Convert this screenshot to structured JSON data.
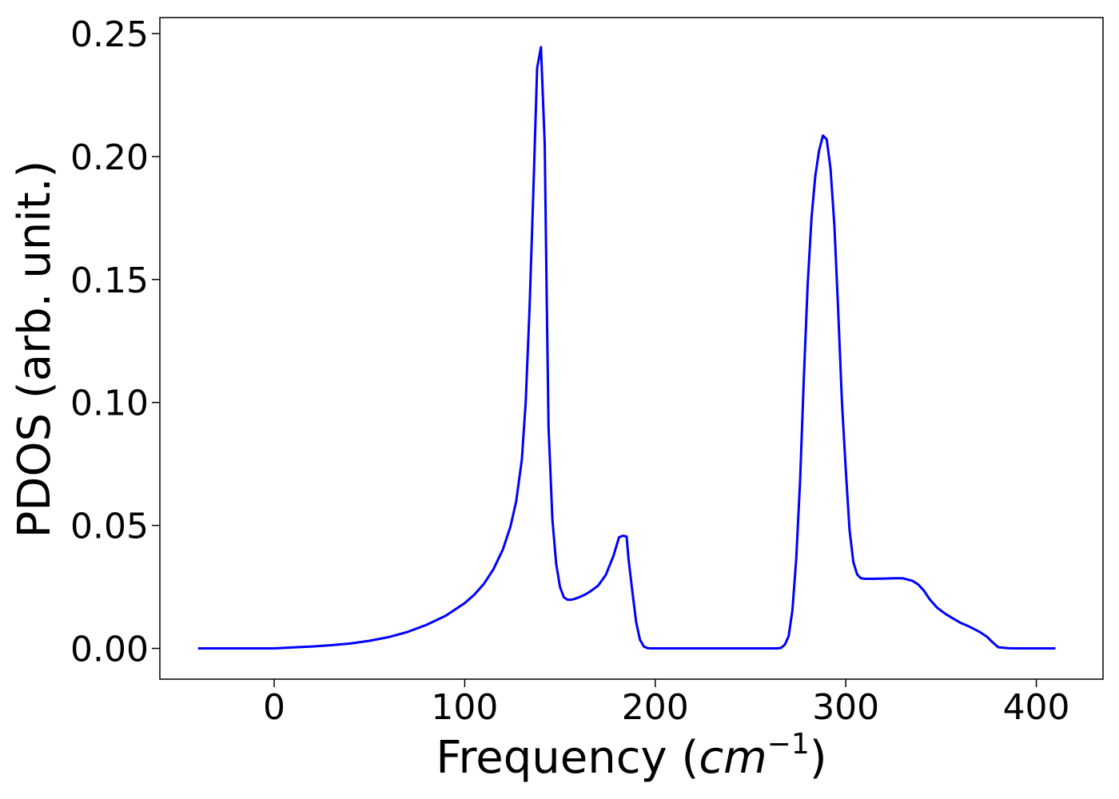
{
  "chart_data": {
    "type": "line",
    "title": "",
    "xlabel": {
      "prefix": "Frequency (",
      "math_base": "cm",
      "math_sup": "−1",
      "suffix": ")"
    },
    "ylabel": "PDOS (arb. unit.)",
    "xlim": [
      -60,
      435
    ],
    "ylim": [
      -0.0125,
      0.2565
    ],
    "xticks": [
      0,
      100,
      200,
      300,
      400
    ],
    "xtick_labels": [
      "0",
      "100",
      "200",
      "300",
      "400"
    ],
    "yticks": [
      0.0,
      0.05,
      0.1,
      0.15,
      0.2,
      0.25
    ],
    "ytick_labels": [
      "0.00",
      "0.05",
      "0.10",
      "0.15",
      "0.20",
      "0.25"
    ],
    "grid": false,
    "legend": "none",
    "colors": {
      "line": "#0000ff",
      "axes": "#000000"
    },
    "series": [
      {
        "x": [
          -40,
          -20,
          0,
          10,
          20,
          30,
          40,
          50,
          60,
          70,
          80,
          90,
          100,
          105,
          110,
          115,
          120,
          124,
          127,
          130,
          132,
          134,
          136,
          138,
          140,
          142,
          143,
          144,
          146,
          148,
          150,
          152,
          154,
          156,
          158,
          160,
          163,
          166,
          170,
          174,
          178,
          181,
          183,
          185,
          186,
          188,
          190,
          192,
          194,
          196,
          198,
          200,
          202,
          205,
          210,
          230,
          250,
          262,
          264,
          266,
          268,
          270,
          272,
          274,
          276,
          278,
          280,
          282,
          284,
          286,
          288,
          290,
          292,
          294,
          296,
          298,
          300,
          302,
          304,
          306,
          308,
          310,
          312,
          315,
          320,
          325,
          330,
          335,
          338,
          341,
          344,
          348,
          352,
          356,
          360,
          365,
          370,
          374,
          377,
          380,
          385,
          390,
          400,
          410
        ],
        "y": [
          0.0,
          0.0,
          0.0,
          0.0004,
          0.0008,
          0.0013,
          0.002,
          0.0031,
          0.0046,
          0.0067,
          0.0096,
          0.0133,
          0.0184,
          0.0218,
          0.0262,
          0.0321,
          0.0402,
          0.0495,
          0.0598,
          0.0768,
          0.1,
          0.138,
          0.185,
          0.236,
          0.2445,
          0.205,
          0.145,
          0.09,
          0.0525,
          0.0345,
          0.025,
          0.0208,
          0.0198,
          0.0198,
          0.0202,
          0.0208,
          0.0218,
          0.0232,
          0.0255,
          0.0298,
          0.0375,
          0.0452,
          0.0458,
          0.0455,
          0.0362,
          0.023,
          0.0105,
          0.0035,
          0.0008,
          0.0001,
          0.0,
          0.0,
          0.0,
          0.0,
          0.0,
          0.0,
          0.0,
          0.0,
          0.0,
          0.0002,
          0.0015,
          0.005,
          0.0155,
          0.0365,
          0.068,
          0.11,
          0.148,
          0.175,
          0.192,
          0.2025,
          0.2085,
          0.207,
          0.195,
          0.172,
          0.138,
          0.1,
          0.0725,
          0.048,
          0.035,
          0.03,
          0.0285,
          0.0283,
          0.0283,
          0.0283,
          0.0284,
          0.0285,
          0.0285,
          0.0275,
          0.026,
          0.0235,
          0.02,
          0.0165,
          0.0142,
          0.0123,
          0.0105,
          0.0088,
          0.0068,
          0.0048,
          0.0025,
          0.0005,
          0.0001,
          0.0,
          0.0,
          0.0
        ]
      }
    ]
  }
}
